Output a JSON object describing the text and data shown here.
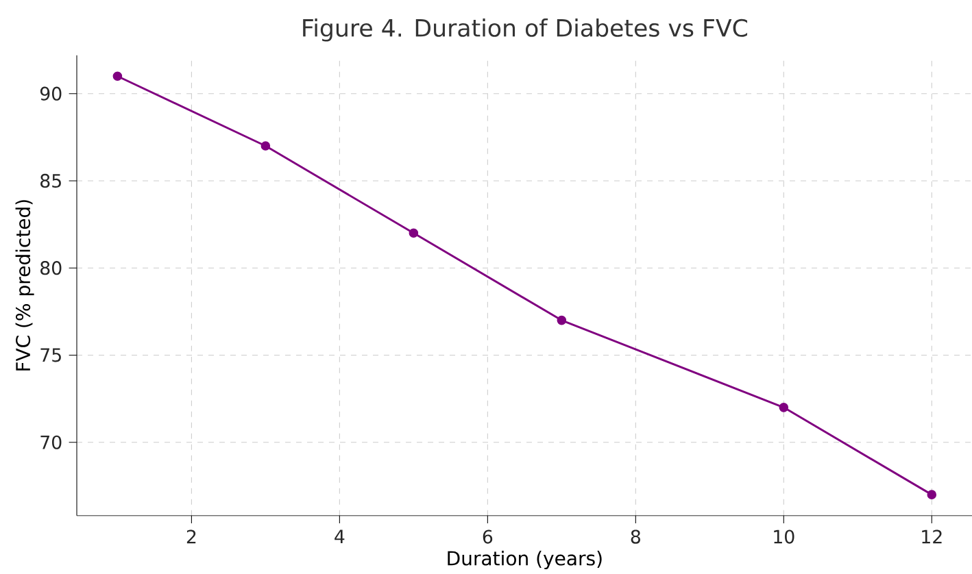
{
  "chart_data": {
    "type": "line",
    "title": "Figure 4. Duration of Diabetes vs FVC",
    "xlabel": "Duration (years)",
    "ylabel": "FVC (% predicted)",
    "x": [
      1,
      3,
      5,
      7,
      10,
      12
    ],
    "series": [
      {
        "color": "#800080",
        "values": [
          91,
          87,
          82,
          77,
          72,
          67
        ]
      }
    ],
    "xlim": [
      0.45,
      12.55
    ],
    "ylim": [
      65.8,
      92.2
    ],
    "xticks": [
      2,
      4,
      6,
      8,
      10,
      12
    ],
    "yticks": [
      70,
      75,
      80,
      85,
      90
    ],
    "grid": true,
    "marker": "circle",
    "line_style": "solid"
  }
}
